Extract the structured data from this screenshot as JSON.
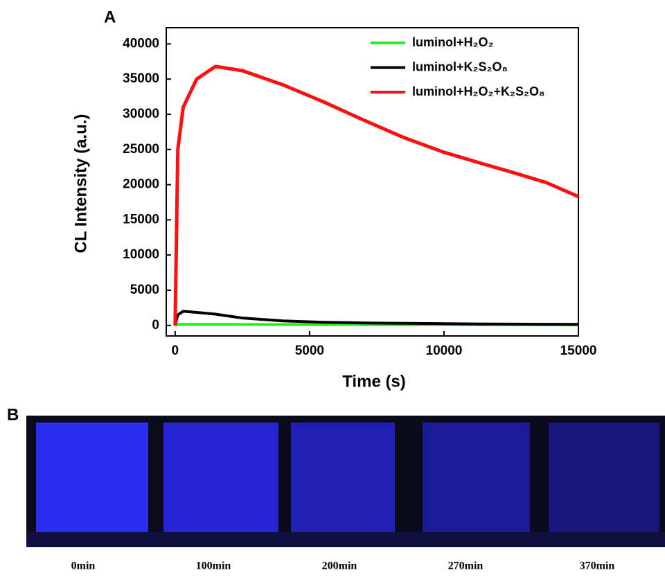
{
  "chart_data": {
    "type": "line",
    "panel_label": "A",
    "x_label": "Time (s)",
    "y_label": "CL Intensity (a.u.)",
    "x": [
      0,
      100,
      300,
      800,
      1500,
      2500,
      4000,
      5500,
      7000,
      8500,
      10000,
      11500,
      12500,
      13800,
      15000
    ],
    "series": [
      {
        "name": "luminol+H₂O₂",
        "color": "#22ee22",
        "values": [
          0,
          150,
          150,
          150,
          140,
          130,
          120,
          110,
          100,
          100,
          90,
          80,
          80,
          70,
          60
        ]
      },
      {
        "name": "luminol+K₂S₂O₈",
        "color": "#000000",
        "values": [
          0,
          1500,
          2000,
          1850,
          1600,
          1050,
          650,
          450,
          350,
          300,
          250,
          200,
          180,
          160,
          150
        ]
      },
      {
        "name": "luminol+H₂O₂+K₂S₂O₈",
        "color": "#ff1010",
        "values": [
          0,
          25000,
          31000,
          35000,
          36800,
          36200,
          34200,
          31800,
          29200,
          26700,
          24600,
          22900,
          21800,
          20300,
          18300
        ]
      }
    ],
    "xlim": [
      -330,
      15000
    ],
    "ylim": [
      -1500,
      42300
    ],
    "xticks": [
      0,
      5000,
      10000,
      15000
    ],
    "yticks": [
      0,
      5000,
      10000,
      15000,
      20000,
      25000,
      30000,
      35000,
      40000
    ],
    "legend": "upper right"
  },
  "panel_b": {
    "label": "B",
    "captions": [
      "0min",
      "100min",
      "200min",
      "270min",
      "370min"
    ]
  }
}
